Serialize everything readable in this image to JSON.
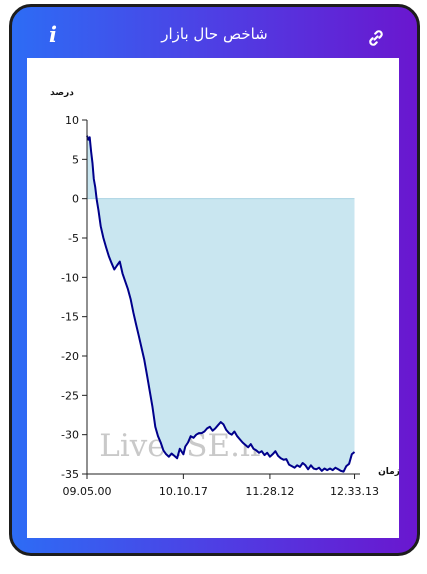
{
  "header": {
    "title": "شاخص حال بازار",
    "info_icon": "info-icon",
    "info_glyph": "i",
    "link_icon": "link-icon"
  },
  "colors": {
    "header_gradient_start": "#2d6cf5",
    "header_gradient_end": "#6a17cf",
    "line": "#00008b",
    "area_fill": "#c9e6f0"
  },
  "chart_data": {
    "type": "area",
    "ylabel": "درصد",
    "xlabel": "زمان",
    "ylim": [
      -35,
      10
    ],
    "yticks": [
      10,
      5,
      0,
      -5,
      -10,
      -15,
      -20,
      -25,
      -30,
      -35
    ],
    "ytick_labels": [
      "10",
      "5",
      "0",
      "-5",
      "-10",
      "-15",
      "-20",
      "-25",
      "-30",
      "-35"
    ],
    "xlim": [
      0,
      100
    ],
    "xticks": [
      0,
      35.3,
      67,
      98
    ],
    "xtick_labels": [
      "09.05.00",
      "10.10.17",
      "11.28.12",
      "12.33.13"
    ],
    "grid": false,
    "watermark": "LiveTSE.ir",
    "series": [
      {
        "x": [
          0,
          0.5,
          1,
          1.5,
          2,
          2.5,
          3,
          3.6,
          4.2,
          5,
          6,
          7,
          8,
          9,
          10,
          11,
          12,
          13,
          14,
          15,
          16,
          17,
          18,
          19,
          20,
          21,
          22,
          23,
          24,
          25,
          26,
          27,
          28,
          29,
          30,
          31,
          32,
          33,
          34,
          35.3,
          36,
          37,
          38,
          39,
          40,
          41,
          42,
          43,
          44,
          45,
          46,
          47,
          48,
          49,
          50,
          51,
          52,
          53,
          54,
          55,
          56,
          57,
          58,
          59,
          60,
          61,
          62,
          63,
          64,
          65,
          66,
          67,
          68,
          69,
          70,
          71,
          72,
          73,
          74,
          75,
          76,
          77,
          78,
          79,
          80,
          81,
          82,
          83,
          84,
          85,
          86,
          87,
          88,
          89,
          90,
          91,
          92,
          93,
          94,
          95,
          96,
          97,
          98
        ],
        "values": [
          8,
          7.5,
          7.8,
          6,
          4.5,
          2.5,
          1.5,
          -0.2,
          -1.5,
          -3.5,
          -5,
          -6.2,
          -7.3,
          -8.2,
          -9,
          -8.5,
          -8,
          -9.5,
          -10.5,
          -11.5,
          -12.8,
          -14.5,
          -16,
          -17.5,
          -19,
          -20.5,
          -22.5,
          -24.5,
          -26.5,
          -29,
          -30.2,
          -31,
          -32,
          -32.5,
          -32.8,
          -32.4,
          -32.7,
          -33,
          -31.8,
          -32.5,
          -31.5,
          -31,
          -30.2,
          -30.4,
          -30,
          -29.8,
          -29.8,
          -29.6,
          -29.2,
          -29,
          -29.5,
          -29.2,
          -28.8,
          -28.4,
          -28.7,
          -29.4,
          -29.8,
          -30,
          -29.6,
          -30.2,
          -30.6,
          -31,
          -31.3,
          -31.6,
          -31.2,
          -31.8,
          -32,
          -32.3,
          -32.1,
          -32.6,
          -32.3,
          -32.8,
          -32.5,
          -32.1,
          -32.7,
          -33,
          -33.2,
          -33.1,
          -33.8,
          -34,
          -34.2,
          -33.9,
          -34.1,
          -33.6,
          -33.9,
          -34.4,
          -33.9,
          -34.3,
          -34.4,
          -34.2,
          -34.6,
          -34.3,
          -34.5,
          -34.3,
          -34.5,
          -34.2,
          -34.4,
          -34.6,
          -34.7,
          -34,
          -33.7,
          -32.5,
          -32.2
        ]
      }
    ]
  }
}
